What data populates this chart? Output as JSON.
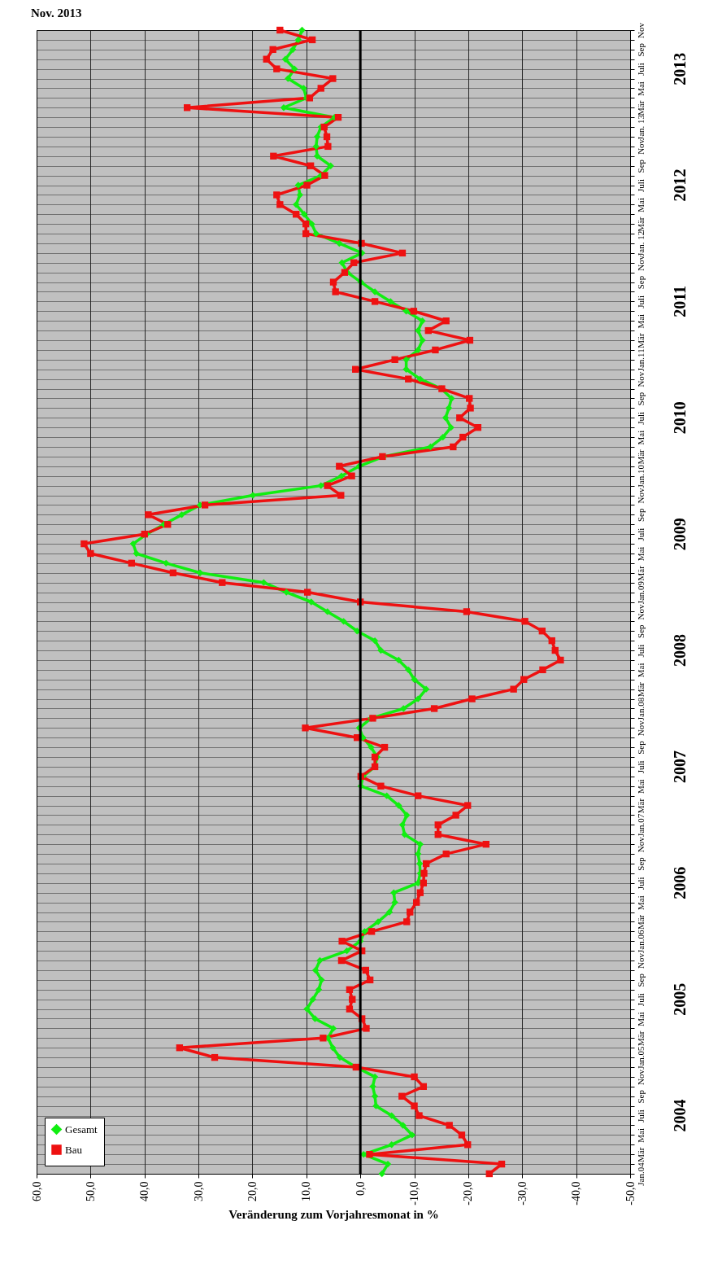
{
  "chart_data": {
    "type": "line",
    "orientation": "horizontal",
    "title": "Nov. 2013",
    "xlabel": "Veränderung zum Vorjahresmonat in %",
    "categories": [
      "Nov",
      null,
      "Sep",
      null,
      "Juli",
      null,
      "Mai",
      null,
      "Mär",
      null,
      "Jan. 13",
      null,
      "Nov",
      null,
      "Sep",
      null,
      "Juli",
      null,
      "Mai",
      null,
      "Mär",
      null,
      "Jan. 12",
      null,
      "Nov",
      null,
      "Sep",
      null,
      "Juli",
      null,
      "Mai",
      null,
      "Mär",
      null,
      "Jan.11",
      null,
      "Nov",
      null,
      "Sep",
      null,
      "Juli",
      null,
      "Mai",
      null,
      "Mär",
      null,
      "Jan.10",
      null,
      "Nov",
      null,
      "Sep",
      null,
      "Juli",
      null,
      "Mai",
      null,
      "Mär",
      null,
      "Jan.09",
      null,
      "Nov",
      null,
      "Sep",
      null,
      "Juli",
      null,
      "Mai",
      null,
      "Mär",
      null,
      "Jan.08",
      null,
      "Nov",
      null,
      "Sep",
      null,
      "Juli",
      null,
      "Mai",
      null,
      "Mär",
      null,
      "Jan.07",
      null,
      "Nov",
      null,
      "Sep",
      null,
      "Juli",
      null,
      "Mai",
      null,
      "Mär",
      null,
      "Jan.06",
      null,
      "Nov",
      null,
      "Sep",
      null,
      "Juli",
      null,
      "Mai",
      null,
      "Mär",
      null,
      "Jan.05",
      null,
      "Nov",
      null,
      "Sep",
      null,
      "Juli",
      null,
      "Mai",
      null,
      "Mär",
      null,
      "Jan.04"
    ],
    "series": [
      {
        "name": "Gesamt",
        "color": "#11ee11",
        "marker": "diamond",
        "values": [
          10.8,
          11.5,
          12.5,
          13.9,
          12.2,
          13.4,
          10.5,
          10.0,
          14.2,
          4.8,
          7.3,
          8.0,
          8.2,
          8.0,
          5.5,
          7.3,
          11.5,
          11.2,
          11.9,
          10.4,
          9.0,
          8.2,
          3.9,
          -0.3,
          3.4,
          2.4,
          -0.1,
          -2.7,
          -5.6,
          -8.5,
          -11.5,
          -10.7,
          -11.5,
          -10.7,
          -8.5,
          -8.5,
          -11.1,
          -15.0,
          -16.9,
          -16.4,
          -15.8,
          -16.8,
          -15.3,
          -13.0,
          -4.3,
          0.2,
          3.5,
          7.3,
          19.9,
          29.7,
          33.1,
          36.4,
          39.6,
          42.1,
          41.5,
          36.0,
          29.7,
          17.9,
          13.7,
          9.1,
          6.1,
          3.1,
          0.6,
          -2.7,
          -3.8,
          -7.1,
          -8.9,
          -10.0,
          -12.2,
          -10.7,
          -8.0,
          -2.0,
          0.2,
          -0.5,
          -2.0,
          -3.1,
          -2.7,
          -0.5,
          -0.1,
          -4.9,
          -7.1,
          -8.6,
          -7.8,
          -8.2,
          -11.1,
          -10.7,
          -11.0,
          -11.1,
          -10.7,
          -6.2,
          -6.4,
          -5.4,
          -3.3,
          -0.8,
          0.0,
          2.5,
          7.5,
          8.3,
          7.2,
          7.7,
          8.8,
          9.9,
          8.4,
          5.0,
          6.0,
          5.1,
          3.8,
          0.8,
          -2.7,
          -2.3,
          -2.7,
          -2.9,
          -5.8,
          -7.9,
          -9.6,
          -5.8,
          -0.6,
          -5.1,
          -4.0
        ]
      },
      {
        "name": "Bau",
        "color": "#ee1111",
        "marker": "square",
        "values": [
          14.9,
          8.9,
          16.2,
          17.4,
          15.5,
          5.1,
          7.3,
          9.4,
          32.1,
          4.1,
          6.7,
          6.2,
          6.0,
          16.1,
          9.2,
          6.6,
          9.9,
          15.5,
          14.9,
          11.9,
          10.1,
          10.1,
          -0.2,
          -7.8,
          1.2,
          2.9,
          5.0,
          4.6,
          -2.7,
          -9.9,
          -15.9,
          -12.6,
          -20.3,
          -13.9,
          -6.4,
          0.9,
          -8.9,
          -15.1,
          -20.2,
          -20.4,
          -18.4,
          -21.8,
          -19.0,
          -17.2,
          -4.1,
          3.9,
          1.6,
          6.1,
          3.6,
          28.8,
          39.3,
          35.7,
          40.0,
          51.2,
          50.0,
          42.4,
          34.7,
          25.6,
          9.8,
          0.0,
          -19.7,
          -30.5,
          -33.7,
          -35.5,
          -36.1,
          -37.1,
          -33.8,
          -30.3,
          -28.4,
          -20.7,
          -13.7,
          -2.3,
          10.2,
          0.6,
          -4.5,
          -2.7,
          -2.7,
          -0.1,
          -3.8,
          -10.7,
          -19.9,
          -17.7,
          -14.4,
          -14.4,
          -23.3,
          -15.9,
          -12.2,
          -11.8,
          -11.7,
          -11.1,
          -10.4,
          -9.2,
          -8.6,
          -2.1,
          3.4,
          -0.3,
          3.5,
          -1.0,
          -1.8,
          2.0,
          1.5,
          2.0,
          -0.3,
          -1.1,
          6.9,
          33.5,
          27.0,
          0.8,
          -10.0,
          -11.7,
          -7.7,
          -10.0,
          -10.9,
          -16.5,
          -18.8,
          -19.9,
          -1.7,
          -26.2,
          -23.9
        ]
      }
    ],
    "xlim": [
      60,
      -50
    ],
    "xticks": [
      {
        "value": 60,
        "label": "60,0"
      },
      {
        "value": 50,
        "label": "50,0"
      },
      {
        "value": 40,
        "label": "40,0"
      },
      {
        "value": 30,
        "label": "30,0"
      },
      {
        "value": 20,
        "label": "20,0"
      },
      {
        "value": 10,
        "label": "10,0"
      },
      {
        "value": 0,
        "label": "0,0"
      },
      {
        "value": -10,
        "label": "-10,0"
      },
      {
        "value": -20,
        "label": "-20,0"
      },
      {
        "value": -30,
        "label": "-30,0"
      },
      {
        "value": -40,
        "label": "-40,0"
      },
      {
        "value": -50,
        "label": "-50,0"
      }
    ],
    "ref_lines": [
      {
        "axis": "x",
        "value": 0,
        "color": "#000000"
      }
    ],
    "annotations": [
      "2013",
      "2012",
      "2011",
      "2010",
      "2009",
      "2008",
      "2007",
      "2006",
      "2005",
      "2004"
    ],
    "grid": true,
    "legend": "bottom left",
    "line_style": "solid"
  }
}
